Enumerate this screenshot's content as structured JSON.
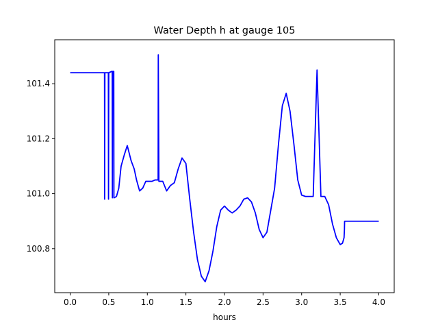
{
  "chart_data": {
    "type": "line",
    "title": "Water Depth h at gauge 105",
    "xlabel": "hours",
    "ylabel": "",
    "xlim": [
      -0.2,
      4.2
    ],
    "ylim": [
      100.64,
      101.56
    ],
    "xticks": [
      {
        "value": 0.0,
        "label": "0.0"
      },
      {
        "value": 0.5,
        "label": "0.5"
      },
      {
        "value": 1.0,
        "label": "1.0"
      },
      {
        "value": 1.5,
        "label": "1.5"
      },
      {
        "value": 2.0,
        "label": "2.0"
      },
      {
        "value": 2.5,
        "label": "2.5"
      },
      {
        "value": 3.0,
        "label": "3.0"
      },
      {
        "value": 3.5,
        "label": "3.5"
      },
      {
        "value": 4.0,
        "label": "4.0"
      }
    ],
    "yticks": [
      {
        "value": 100.8,
        "label": "100.8"
      },
      {
        "value": 101.0,
        "label": "101.0"
      },
      {
        "value": 101.2,
        "label": "101.2"
      },
      {
        "value": 101.4,
        "label": "101.4"
      }
    ],
    "grid": false,
    "series": [
      {
        "color": "#0000ff",
        "x": [
          0.0,
          0.2,
          0.44,
          0.445,
          0.447,
          0.45,
          0.47,
          0.495,
          0.497,
          0.5,
          0.54,
          0.545,
          0.547,
          0.55,
          0.565,
          0.567,
          0.57,
          0.6,
          0.63,
          0.66,
          0.7,
          0.74,
          0.79,
          0.83,
          0.86,
          0.9,
          0.94,
          0.98,
          1.02,
          1.06,
          1.1,
          1.135,
          1.14,
          1.142,
          1.15,
          1.2,
          1.25,
          1.3,
          1.35,
          1.4,
          1.45,
          1.5,
          1.55,
          1.6,
          1.65,
          1.7,
          1.75,
          1.8,
          1.85,
          1.9,
          1.95,
          2.0,
          2.05,
          2.1,
          2.15,
          2.2,
          2.25,
          2.3,
          2.35,
          2.4,
          2.45,
          2.5,
          2.55,
          2.6,
          2.65,
          2.7,
          2.75,
          2.8,
          2.85,
          2.9,
          2.95,
          3.0,
          3.05,
          3.1,
          3.15,
          3.2,
          3.25,
          3.3,
          3.35,
          3.4,
          3.45,
          3.5,
          3.53,
          3.55,
          3.555,
          3.557,
          3.56,
          3.6,
          3.65,
          3.7,
          3.75,
          3.8,
          3.85,
          3.9,
          3.95,
          4.0
        ],
        "y": [
          101.44,
          101.44,
          101.44,
          101.44,
          100.98,
          101.44,
          101.44,
          101.44,
          100.98,
          101.44,
          101.445,
          101.445,
          100.985,
          101.445,
          101.445,
          100.985,
          100.985,
          100.99,
          101.02,
          101.1,
          101.14,
          101.175,
          101.12,
          101.09,
          101.05,
          101.01,
          101.02,
          101.045,
          101.045,
          101.045,
          101.05,
          101.05,
          101.05,
          101.505,
          101.045,
          101.045,
          101.01,
          101.03,
          101.04,
          101.09,
          101.13,
          101.11,
          100.98,
          100.86,
          100.76,
          100.7,
          100.68,
          100.72,
          100.79,
          100.88,
          100.94,
          100.955,
          100.94,
          100.93,
          100.94,
          100.955,
          100.98,
          100.985,
          100.97,
          100.93,
          100.87,
          100.84,
          100.86,
          100.94,
          101.02,
          101.18,
          101.32,
          101.365,
          101.3,
          101.18,
          101.05,
          100.995,
          100.99,
          100.99,
          100.99,
          101.45,
          100.99,
          100.99,
          100.96,
          100.89,
          100.84,
          100.815,
          100.82,
          100.84,
          100.87,
          100.9,
          100.9,
          100.9,
          100.9,
          100.9,
          100.9,
          100.9,
          100.9,
          100.9,
          100.9,
          100.9
        ]
      }
    ]
  }
}
